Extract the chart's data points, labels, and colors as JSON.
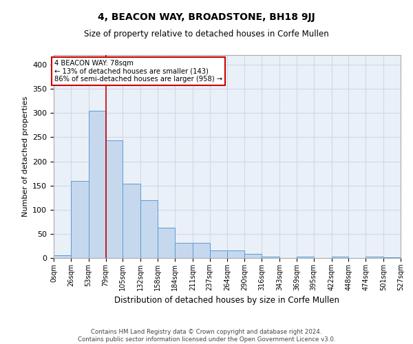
{
  "title1": "4, BEACON WAY, BROADSTONE, BH18 9JJ",
  "title2": "Size of property relative to detached houses in Corfe Mullen",
  "xlabel": "Distribution of detached houses by size in Corfe Mullen",
  "ylabel": "Number of detached properties",
  "footer1": "Contains HM Land Registry data © Crown copyright and database right 2024.",
  "footer2": "Contains public sector information licensed under the Open Government Licence v3.0.",
  "annotation_title": "4 BEACON WAY: 78sqm",
  "annotation_line1": "← 13% of detached houses are smaller (143)",
  "annotation_line2": "86% of semi-detached houses are larger (958) →",
  "property_size": 78,
  "bin_edges": [
    0,
    26,
    53,
    79,
    105,
    132,
    158,
    184,
    211,
    237,
    264,
    290,
    316,
    343,
    369,
    395,
    422,
    448,
    474,
    501,
    527
  ],
  "bar_values": [
    5,
    159,
    305,
    243,
    154,
    120,
    62,
    31,
    31,
    15,
    15,
    9,
    3,
    0,
    3,
    0,
    3,
    0,
    3,
    2
  ],
  "bar_color": "#c5d8ed",
  "bar_edge_color": "#5b9bd5",
  "vline_color": "#cc0000",
  "vline_x": 79,
  "annotation_box_color": "#cc0000",
  "ylim": [
    0,
    420
  ],
  "yticks": [
    0,
    50,
    100,
    150,
    200,
    250,
    300,
    350,
    400
  ],
  "grid_color": "#d0d8e8",
  "background_color": "#eaf0f8"
}
